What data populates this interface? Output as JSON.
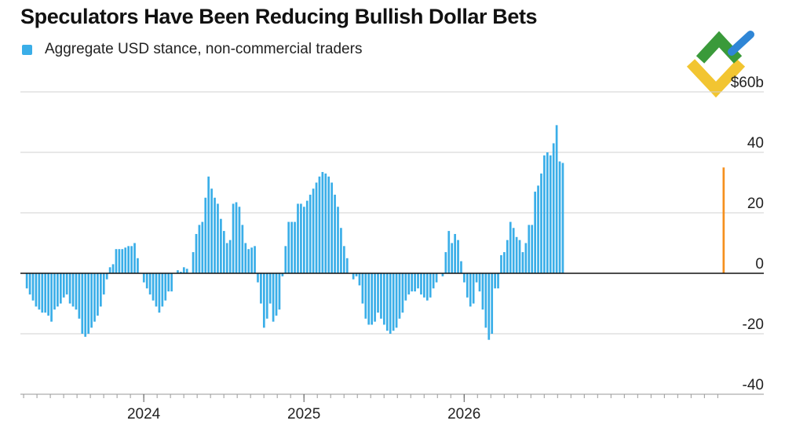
{
  "title": "Speculators Have Been Reducing Bullish Dollar Bets",
  "legend": {
    "label": "Aggregate USD stance, non-commercial traders"
  },
  "colors": {
    "bar": "#3aaee8",
    "highlight": "#f5901e",
    "grid": "#d0d0d0",
    "zero": "#111111"
  },
  "logo": {
    "icon": "brand-logo-icon",
    "colors": [
      "#3a9a3a",
      "#f2c531",
      "#2f86d6"
    ]
  },
  "chart_data": {
    "type": "bar",
    "title": "Speculators Have Been Reducing Bullish Dollar Bets",
    "xlabel": "",
    "ylabel": "",
    "ylim": [
      -40,
      60
    ],
    "y_ticks": [
      {
        "value": 60,
        "label": "$60b"
      },
      {
        "value": 40,
        "label": "40"
      },
      {
        "value": 20,
        "label": "20"
      },
      {
        "value": 0,
        "label": "0"
      },
      {
        "value": -20,
        "label": "-20"
      },
      {
        "value": -40,
        "label": "-40"
      }
    ],
    "x_ticks": [
      {
        "value": 2024,
        "label": "2024"
      },
      {
        "value": 2025,
        "label": "2025"
      },
      {
        "value": 2026,
        "label": "2026"
      }
    ],
    "x_start": 2023.23,
    "x_end": 2027.66,
    "grid": true,
    "legend_position": "top-left",
    "series": [
      {
        "name": "Aggregate USD stance, non-commercial traders",
        "x_first": 2023.27,
        "x_step": 0.01923,
        "values": [
          -5,
          -7,
          -9,
          -11,
          -12,
          -13,
          -13,
          -14,
          -16,
          -12,
          -11,
          -10,
          -8,
          -7,
          -10,
          -11,
          -12,
          -15,
          -20,
          -21,
          -20,
          -18,
          -16,
          -14,
          -11,
          -7,
          -2,
          2,
          3,
          8,
          8,
          8,
          8.5,
          9,
          9,
          10,
          5,
          0,
          -3,
          -5,
          -7,
          -9,
          -11,
          -13,
          -11,
          -9,
          -6,
          -6,
          0,
          1,
          0.5,
          2,
          1.5,
          0,
          7,
          13,
          16,
          17,
          25,
          32,
          28,
          25,
          23,
          18,
          14,
          10,
          11,
          23,
          23.5,
          22,
          16,
          10,
          8,
          8.5,
          9,
          -3,
          -10,
          -18,
          -15,
          -10,
          -16,
          -14,
          -12,
          -1,
          9,
          17,
          17,
          17,
          23,
          23,
          22,
          24,
          26,
          28,
          30,
          32,
          33.5,
          33,
          32,
          30,
          26,
          22,
          15,
          9,
          5,
          0,
          -2,
          -1,
          -4,
          -10,
          -15,
          -17,
          -17,
          -16,
          -13,
          -15,
          -17,
          -19,
          -20,
          -19,
          -18,
          -15,
          -13,
          -9,
          -7,
          -6,
          -6,
          -5,
          -7,
          -8,
          -9,
          -8,
          -5,
          -3,
          0,
          -1,
          7,
          14,
          10,
          13,
          11,
          4,
          -3,
          -8,
          -11,
          -10,
          -3,
          -6,
          -12,
          -18,
          -22,
          -20,
          -5,
          -5,
          6,
          7,
          11,
          17,
          15,
          12,
          11,
          7,
          10,
          16,
          16,
          27,
          29,
          33,
          39,
          40,
          39,
          43,
          49,
          37,
          36.5
        ]
      },
      {
        "name": "",
        "x_first": 2027.62,
        "x_step": 0.01923,
        "values": [
          35
        ]
      }
    ]
  }
}
